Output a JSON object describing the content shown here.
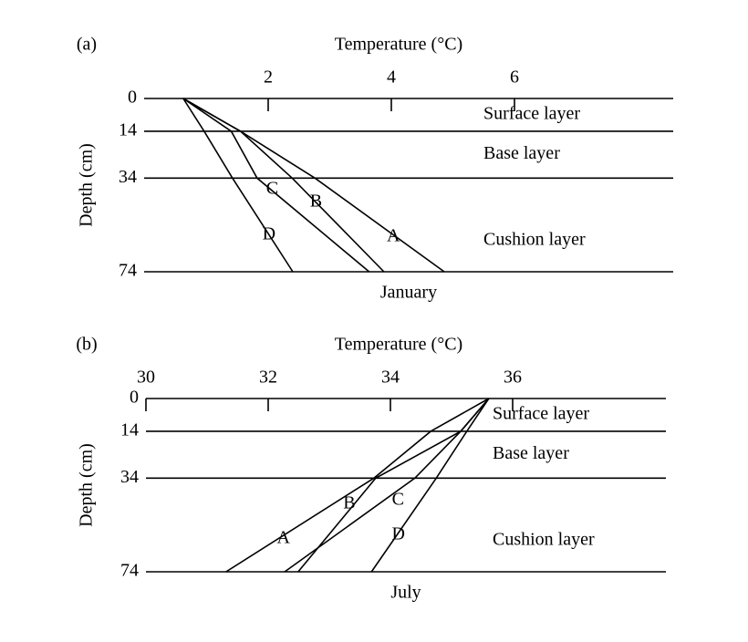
{
  "chart_data": [
    {
      "type": "line",
      "panel_label": "(a)",
      "xlabel": "Temperature (°C)",
      "ylabel": "Depth (cm)",
      "caption": "January",
      "xaxis_position": "top",
      "y_inverted": true,
      "xlim": [
        0,
        8.6
      ],
      "xticks": [
        2,
        4,
        6
      ],
      "ylim": [
        0,
        74
      ],
      "yticks": [
        0,
        14,
        34,
        74
      ],
      "grid": true,
      "annotations": [
        "Surface layer",
        "Base layer",
        "Cushion layer"
      ],
      "series": [
        {
          "name": "A",
          "color": "#000000",
          "x": [
            0.62,
            1.55,
            2.76,
            4.86
          ],
          "y": [
            0,
            14,
            34,
            74
          ]
        },
        {
          "name": "B",
          "color": "#000000",
          "x": [
            0.62,
            1.55,
            2.39,
            3.88
          ],
          "y": [
            0,
            14,
            34,
            74
          ]
        },
        {
          "name": "C",
          "color": "#000000",
          "x": [
            0.62,
            1.4,
            1.82,
            3.64
          ],
          "y": [
            0,
            14,
            34,
            74
          ]
        },
        {
          "name": "D",
          "color": "#000000",
          "x": [
            0.62,
            0.96,
            1.42,
            2.4
          ],
          "y": [
            0,
            14,
            34,
            74
          ]
        }
      ]
    },
    {
      "type": "line",
      "panel_label": "(b)",
      "xlabel": "Temperature (°C)",
      "ylabel": "Depth (cm)",
      "caption": "July",
      "xaxis_position": "top",
      "y_inverted": true,
      "xlim": [
        30,
        38.5
      ],
      "xticks": [
        30,
        32,
        34,
        36
      ],
      "ylim": [
        0,
        74
      ],
      "yticks": [
        0,
        14,
        34,
        74
      ],
      "grid": true,
      "annotations": [
        "Surface layer",
        "Base layer",
        "Cushion layer"
      ],
      "series": [
        {
          "name": "A",
          "color": "#000000",
          "x": [
            35.61,
            34.66,
            33.73,
            31.31
          ],
          "y": [
            0,
            14,
            34,
            74
          ]
        },
        {
          "name": "B",
          "color": "#000000",
          "x": [
            35.61,
            35.15,
            33.76,
            32.49
          ],
          "y": [
            0,
            14,
            34,
            74
          ]
        },
        {
          "name": "C",
          "color": "#000000",
          "x": [
            35.61,
            35.15,
            34.4,
            32.27
          ],
          "y": [
            0,
            14,
            34,
            74
          ]
        },
        {
          "name": "D",
          "color": "#000000",
          "x": [
            35.61,
            35.25,
            34.75,
            33.69
          ],
          "y": [
            0,
            14,
            34,
            74
          ]
        }
      ]
    }
  ]
}
